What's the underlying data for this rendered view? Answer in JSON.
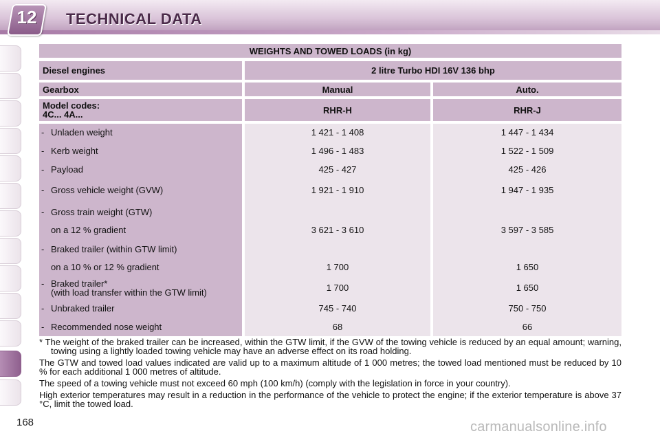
{
  "header": {
    "chapter_number": "12",
    "title": "TECHNICAL DATA"
  },
  "page_number": "168",
  "table": {
    "title": "WEIGHTS AND TOWED LOADS (in kg)",
    "engine_label": "Diesel engines",
    "engine_value": "2 litre Turbo HDI 16V 136 bhp",
    "gearbox_label": "Gearbox",
    "gearbox_manual": "Manual",
    "gearbox_auto": "Auto.",
    "model_label_line1": "Model codes:",
    "model_label_line2": "4C... 4A...",
    "model_manual": "RHR-H",
    "model_auto": "RHR-J",
    "rows": [
      {
        "dash": "-",
        "label": "Unladen weight",
        "manual": "1 421 - 1 408",
        "auto": "1 447 - 1 434"
      },
      {
        "dash": "-",
        "label": "Kerb weight",
        "manual": "1 496 - 1 483",
        "auto": "1 522 - 1 509"
      },
      {
        "dash": "-",
        "label": "Payload",
        "manual": "425 - 427",
        "auto": "425 - 426"
      },
      {
        "dash": "-",
        "label": "Gross vehicle weight (GVW)",
        "manual": "1 921 - 1 910",
        "auto": "1 947 - 1 935"
      },
      {
        "dash": "-",
        "label": "Gross train weight  (GTW)",
        "manual": "",
        "auto": ""
      },
      {
        "dash": "",
        "label": "on a 12 % gradient",
        "manual": "3 621 - 3 610",
        "auto": "3 597 - 3 585"
      },
      {
        "dash": "-",
        "label": "Braked trailer (within GTW limit)",
        "manual": "",
        "auto": ""
      },
      {
        "dash": "",
        "label": "on a 10 % or 12 % gradient",
        "manual": "1 700",
        "auto": "1 650"
      },
      {
        "dash": "-",
        "label": "Braked trailer*",
        "manual": "1 700",
        "auto": "1 650"
      },
      {
        "dash": "",
        "label": "(with load transfer within the GTW limit)",
        "manual": "",
        "auto": ""
      },
      {
        "dash": "-",
        "label": "Unbraked trailer",
        "manual": "745 - 740",
        "auto": "750 - 750"
      },
      {
        "dash": "-",
        "label": "Recommended nose weight",
        "manual": "68",
        "auto": "66"
      }
    ]
  },
  "notes": {
    "footnote": "*  The weight of the braked trailer can be increased, within the GTW limit, if the GVW of the towing vehicle is reduced by an equal amount; warning, towing using a lightly loaded towing vehicle may have an adverse effect on its road holding.",
    "altitude": "The GTW and towed load values indicated are valid up to a maximum altitude of 1 000 metres; the towed load mentioned must be reduced by 10 % for each additional 1 000 metres of altitude.",
    "speed": "The speed of a towing vehicle must not exceed 60 mph (100 km/h) (comply with the legislation in force in your country).",
    "temperature": "High exterior temperatures may result in a reduction in the performance of the vehicle to protect the engine; if the exterior temperature is above 37 °C, limit the towed load."
  },
  "watermark": "carmanualsonline.info",
  "colors": {
    "accent": "#8f608e",
    "header_cell": "#cdb6cc",
    "value_cell": "#ece4eb"
  }
}
